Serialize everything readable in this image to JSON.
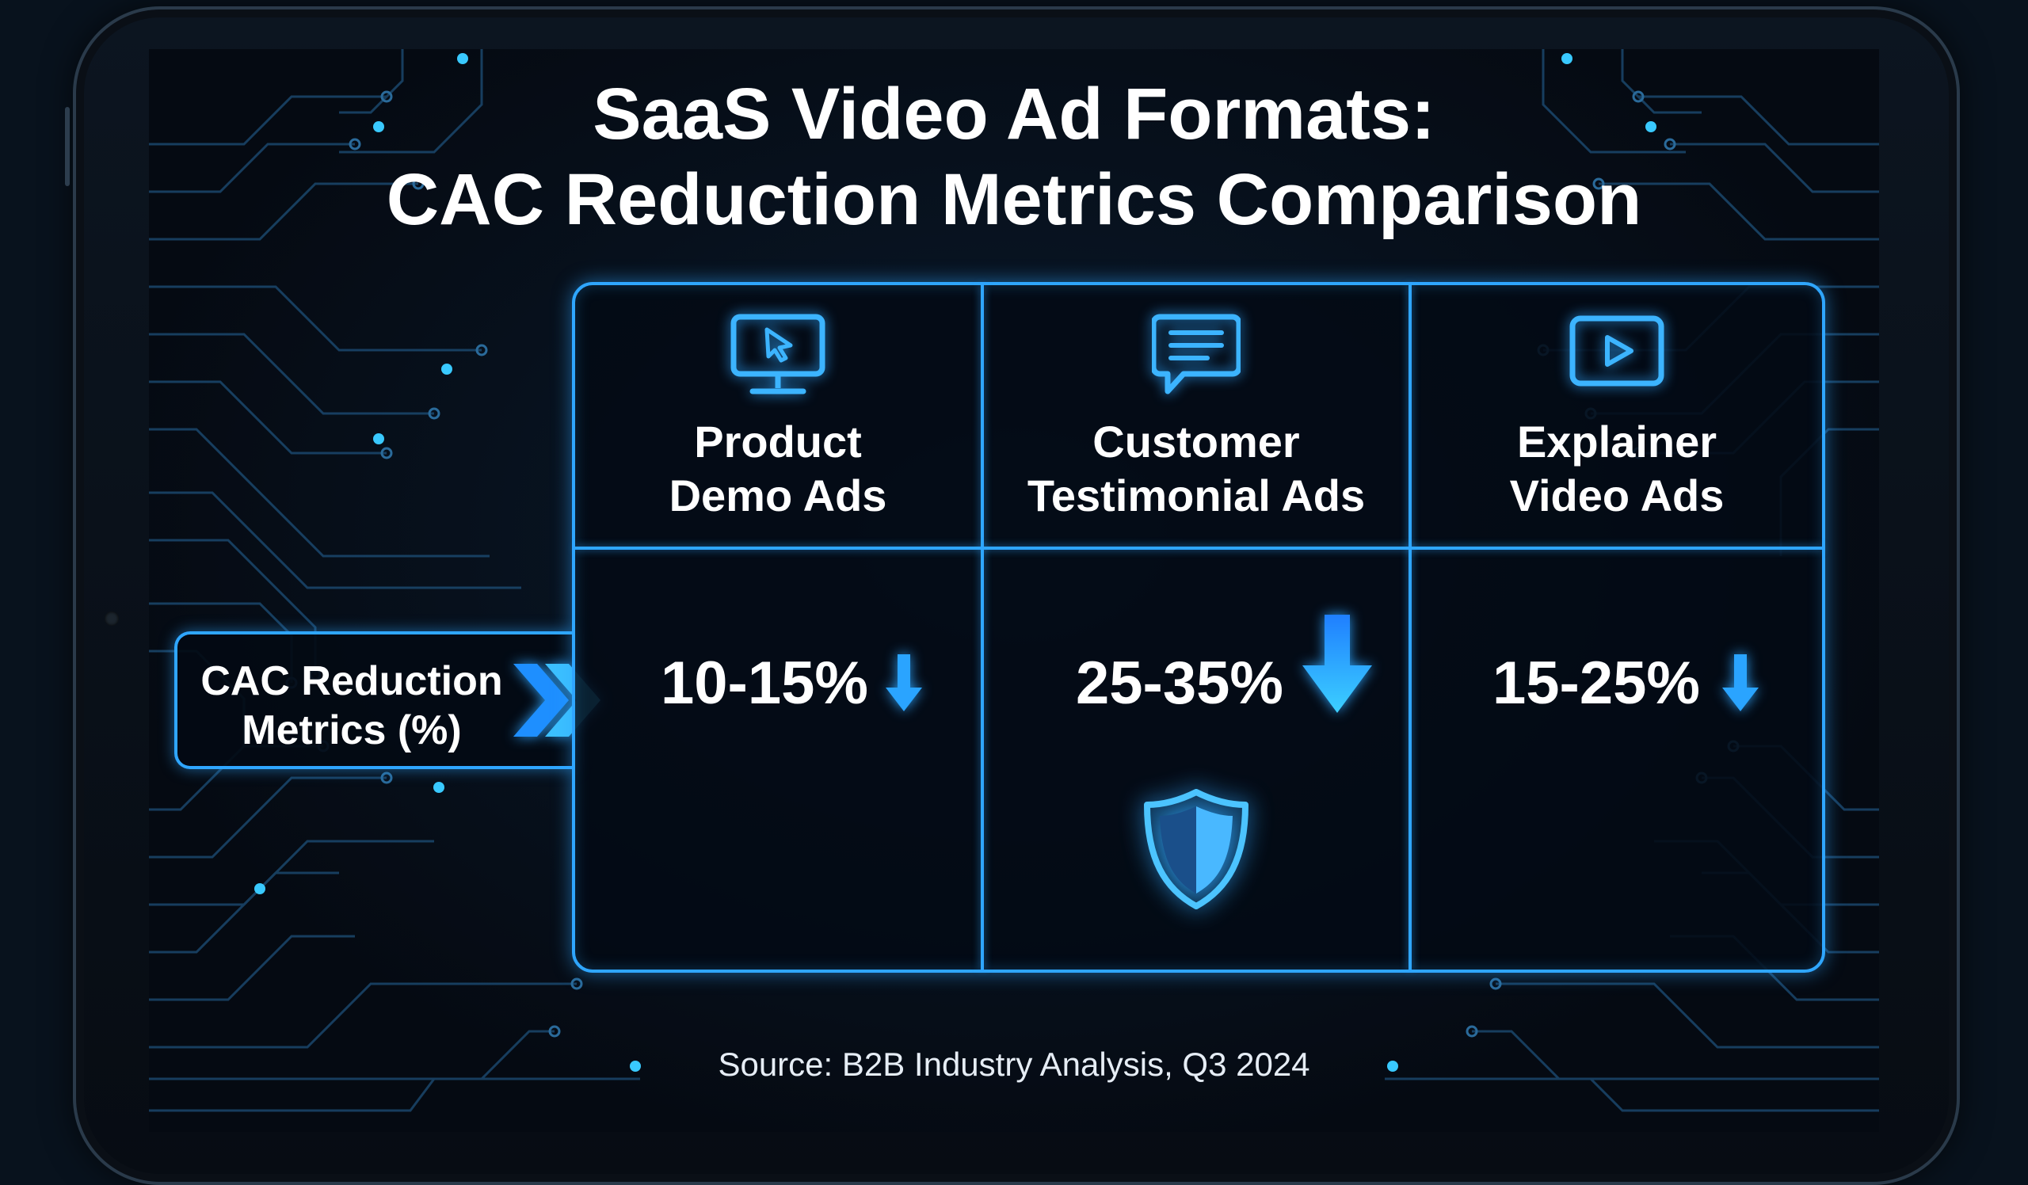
{
  "title": {
    "line1": "SaaS Video Ad Formats:",
    "line2": "CAC Reduction Metrics Comparison"
  },
  "row_header": {
    "line1": "CAC Reduction",
    "line2": "Metrics (%)"
  },
  "columns": [
    {
      "line1": "Product",
      "line2": "Demo Ads",
      "icon": "monitor-cursor-icon",
      "value": "10-15%"
    },
    {
      "line1": "Customer",
      "line2": "Testimonial Ads",
      "icon": "chat-bubble-icon",
      "value": "25-35%"
    },
    {
      "line1": "Explainer",
      "line2": "Video Ads",
      "icon": "play-video-icon",
      "value": "15-25%"
    }
  ],
  "source": "Source: B2B Industry Analysis, Q3 2024",
  "colors": {
    "accent": "#2fa6ff",
    "background": "#050a12",
    "text": "#ffffff"
  },
  "icons": [
    "chevron-right-double-icon",
    "down-arrow-icon",
    "shield-icon"
  ]
}
